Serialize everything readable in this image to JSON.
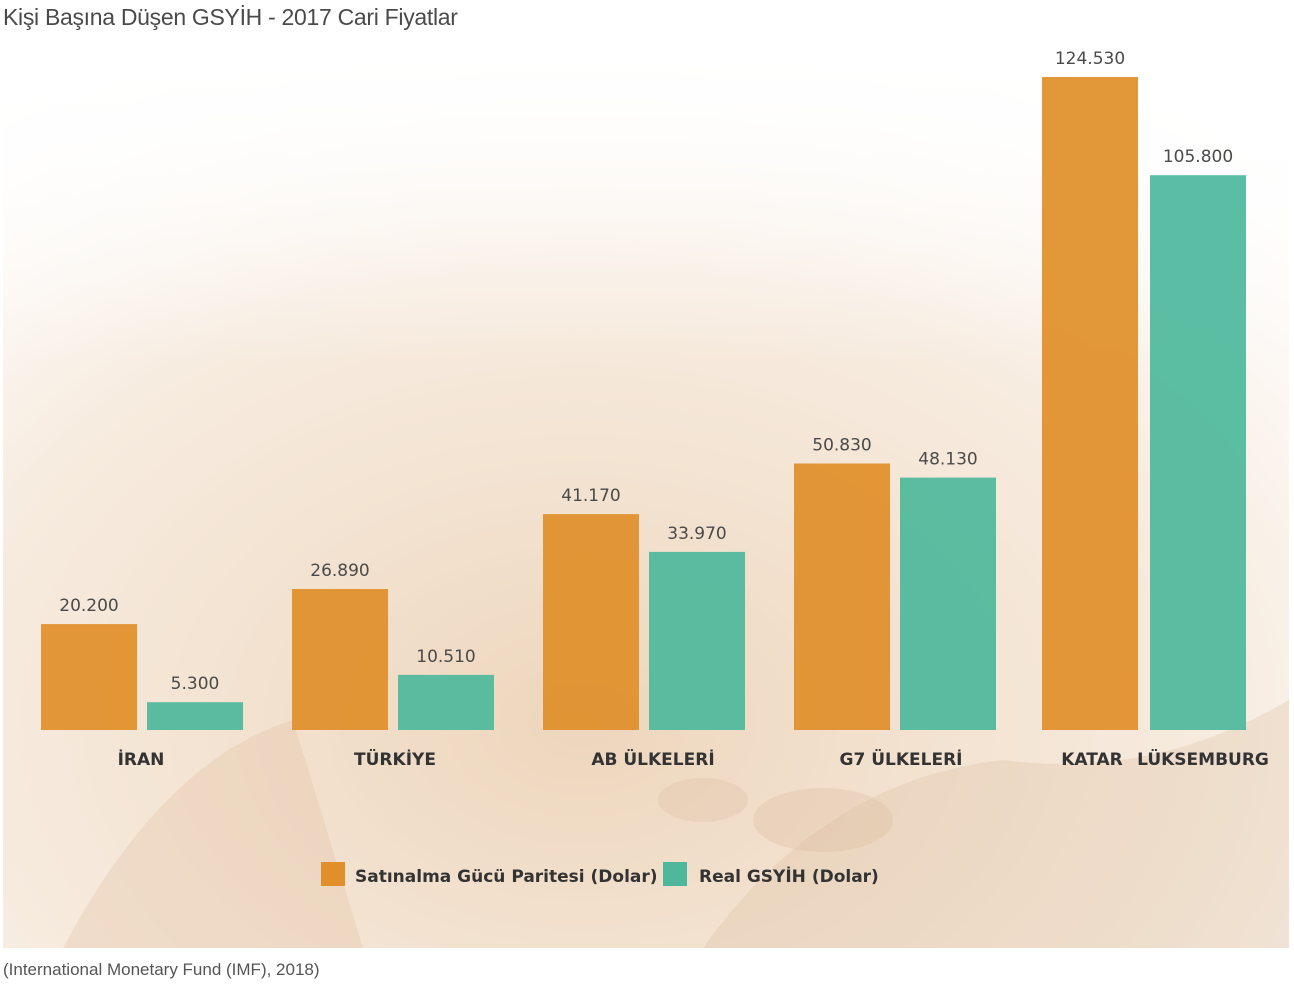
{
  "title": "Kişi Başına Düşen GSYİH - 2017 Cari Fiyatlar",
  "source": "(International Monetary Fund (IMF), 2018)",
  "colors": {
    "series1": "#e08f2a",
    "series2": "#4fb89c",
    "value_label": "#4a4a4a",
    "category_label": "#333333",
    "background_tint": "#f3e4d2"
  },
  "chart_data": {
    "type": "bar",
    "title": "Kişi Başına Düşen GSYİH - 2017 Cari Fiyatlar",
    "xlabel": "",
    "ylabel": "",
    "ylim": [
      0,
      124530
    ],
    "grid": false,
    "legend_position": "bottom-center",
    "categories": [
      "İRAN",
      "TÜRKİYE",
      "AB ÜLKELERİ",
      "G7 ÜLKELERİ",
      "KATAR",
      "LÜKSEMBURG"
    ],
    "series": [
      {
        "name": "Satınalma Gücü Paritesi (Dolar)",
        "values": [
          20200,
          26890,
          41170,
          50830,
          124530,
          null
        ],
        "labels": [
          "20.200",
          "26.890",
          "41.170",
          "50.830",
          "124.530",
          ""
        ]
      },
      {
        "name": "Real GSYİH (Dolar)",
        "values": [
          5300,
          10510,
          33970,
          48130,
          null,
          105800
        ],
        "labels": [
          "5.300",
          "10.510",
          "33.970",
          "48.130",
          "",
          "105.800"
        ]
      }
    ]
  }
}
